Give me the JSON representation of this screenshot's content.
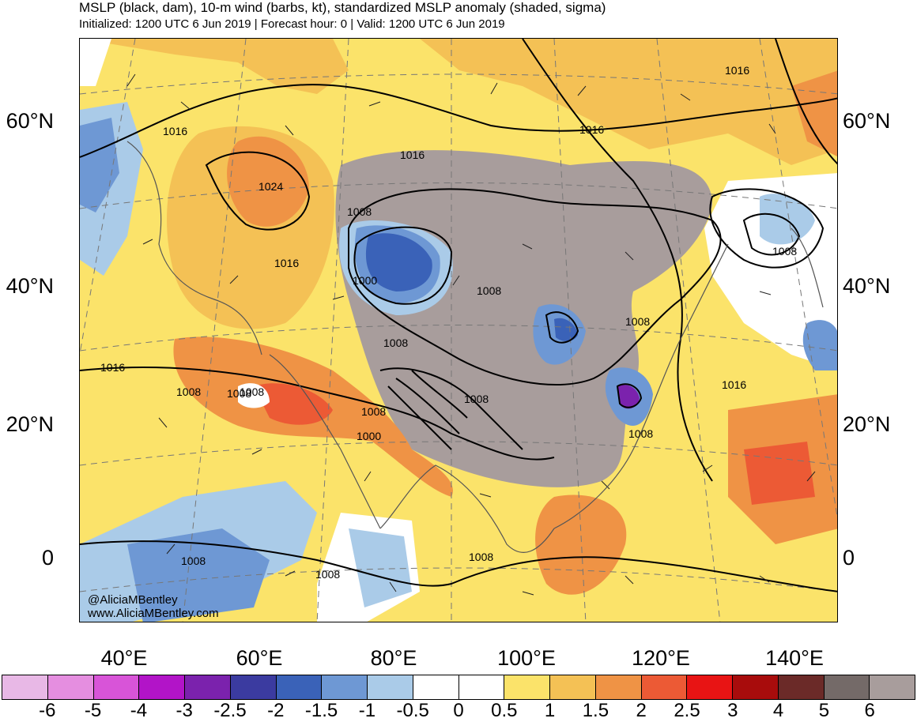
{
  "header": {
    "title": "MSLP (black, dam), 10-m wind (barbs, kt), standardized MSLP anomaly (shaded, sigma)",
    "subtitle": "Initialized: 1200 UTC 6 Jun 2019 | Forecast hour: 0 | Valid: 1200 UTC 6 Jun 2019"
  },
  "lat_labels": [
    "60°N",
    "40°N",
    "20°N",
    "0"
  ],
  "lon_labels": [
    "40°E",
    "60°E",
    "80°E",
    "100°E",
    "120°E",
    "140°E"
  ],
  "contour_labels": [
    "1016",
    "1024",
    "1016",
    "1008",
    "1000",
    "1016",
    "1016",
    "1016",
    "1008",
    "1008",
    "1008",
    "1008",
    "1008",
    "1008",
    "1008",
    "1000",
    "1008",
    "1008",
    "1016",
    "1008",
    "1008",
    "1008",
    "1008",
    "1016"
  ],
  "credit": [
    "@AliciaMBentley",
    "www.AliciaMBentley.com"
  ],
  "colorbar": {
    "labels": [
      "-6",
      "-5",
      "-4",
      "-3",
      "-2.5",
      "-2",
      "-1.5",
      "-1",
      "-0.5",
      "0",
      "0.5",
      "1",
      "1.5",
      "2",
      "2.5",
      "3",
      "4",
      "5",
      "6"
    ],
    "colors": [
      "#e8b8e6",
      "#e58ee0",
      "#d854d8",
      "#b214c8",
      "#7b22ad",
      "#3b3ba0",
      "#3a62b8",
      "#6e98d4",
      "#aacbe8",
      "#ffffff",
      "#ffffff",
      "#fbe36a",
      "#f4c155",
      "#ef9345",
      "#ec5a35",
      "#e81414",
      "#a80c0c",
      "#6b2a28",
      "#746a68",
      "#a89d9c"
    ]
  }
}
